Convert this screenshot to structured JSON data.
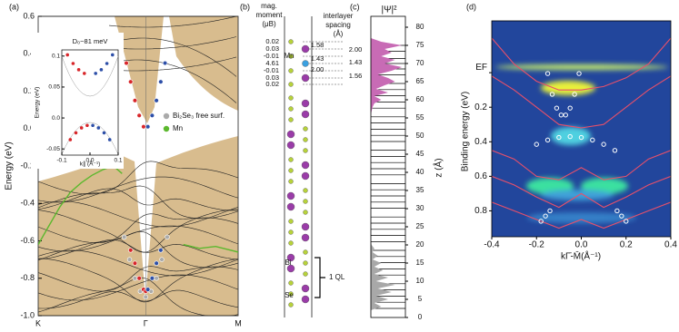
{
  "chart_data": [
    {
      "type": "bands",
      "panel_label": "(a)",
      "ylabel": "Energy (eV)",
      "xlim": [
        0,
        1.86
      ],
      "ylim": [
        -1.0,
        0.6
      ],
      "xticks": [
        {
          "value": 0,
          "label": "K"
        },
        {
          "value": 1,
          "label": "Γ"
        },
        {
          "value": 1.86,
          "label": "M"
        }
      ],
      "yticks": [
        0.6,
        0.4,
        0.2,
        {
          "value": 0,
          "label": "0.0"
        },
        -0.2,
        -0.4,
        -0.6,
        -0.8,
        {
          "value": -1,
          "label": "-1.0"
        }
      ],
      "series": [
        {
          "name": "Bi₂Se₃ free surf.",
          "color": "#aaaaaa",
          "marker": "circle",
          "x": [
            0.8,
            0.85,
            0.9,
            0.95,
            1.0,
            1.05,
            1.1,
            1.15,
            1.2
          ],
          "values": [
            -0.58,
            -0.7,
            -0.8,
            -0.87,
            -0.9,
            -0.87,
            -0.8,
            -0.7,
            -0.58
          ]
        },
        {
          "name": "Mn",
          "color": "#5cb82e",
          "marker": "line",
          "x": [
            0,
            0.1,
            0.2,
            0.3,
            0.4,
            0.5,
            0.6,
            0.7,
            0.78,
            0.79,
            1.35,
            1.5,
            1.65,
            1.86
          ],
          "values": [
            -0.62,
            -0.52,
            -0.42,
            -0.34,
            -0.29,
            -0.25,
            -0.22,
            -0.2,
            -0.24,
            null,
            -0.62,
            -0.64,
            -0.63,
            -0.66
          ]
        },
        {
          "color": "#d8262a",
          "marker": "circle",
          "x": [
            0.82,
            0.86,
            0.9,
            0.94,
            0.98,
            0.86,
            0.9,
            0.94,
            0.98,
            1.0
          ],
          "values": [
            0.35,
            0.25,
            0.15,
            0.07,
            0.01,
            -0.65,
            -0.72,
            -0.8,
            -0.86,
            -0.87
          ]
        },
        {
          "color": "#2d4fa8",
          "marker": "circle",
          "x": [
            1.02,
            1.06,
            1.1,
            1.14,
            1.18,
            1.02,
            1.06,
            1.1,
            1.14
          ],
          "values": [
            0.01,
            0.07,
            0.15,
            0.25,
            0.35,
            -0.86,
            -0.8,
            -0.72,
            -0.65
          ]
        }
      ],
      "inset": {
        "title": "D₀~81 meV",
        "ylabel": "Energy (eV)",
        "xlabel": "k∥ (Å⁻¹)",
        "xlim": [
          -0.1,
          0.1
        ],
        "ylim": [
          -0.06,
          0.11
        ],
        "xticks": [
          -0.1,
          {
            "value": 0,
            "label": "0.0"
          },
          0.1
        ],
        "yticks": [
          0.1,
          0.05,
          {
            "value": 0,
            "label": "0.0"
          },
          -0.05
        ],
        "series": [
          {
            "color": "#d8262a",
            "x": [
              -0.08,
              -0.06,
              -0.04,
              -0.02,
              -0.07,
              -0.05,
              -0.03,
              -0.01
            ],
            "values": [
              0.102,
              0.088,
              0.078,
              0.072,
              -0.035,
              -0.024,
              -0.016,
              -0.012
            ]
          },
          {
            "color": "#2d4fa8",
            "x": [
              0.02,
              0.04,
              0.06,
              0.08,
              0.01,
              0.03,
              0.05,
              0.07
            ],
            "values": [
              0.072,
              0.078,
              0.088,
              0.102,
              -0.012,
              -0.016,
              -0.024,
              -0.035
            ]
          }
        ]
      }
    },
    {
      "type": "density",
      "panel_label": "(c)",
      "title": "|Ψ|²",
      "ylabel": "z (Å)",
      "xlim": [
        0,
        1
      ],
      "ylim": [
        0,
        83
      ],
      "yticks": [
        0,
        5,
        10,
        15,
        20,
        25,
        30,
        35,
        40,
        45,
        50,
        55,
        60,
        65,
        70,
        75,
        80
      ],
      "layers": [
        2.5,
        4.2,
        5.9,
        7.6,
        9.3,
        11.7,
        13.4,
        15.1,
        16.8,
        18.5,
        20.9,
        22.6,
        24.3,
        26.0,
        27.7,
        30.1,
        31.8,
        33.5,
        35.2,
        36.9,
        39.3,
        41.0,
        42.7,
        44.4,
        46.1,
        48.5,
        50.2,
        51.9,
        53.6,
        55.3,
        57.7,
        59.4,
        61.1,
        62.8,
        64.5,
        66.9,
        68.5,
        70.0,
        71.4,
        73.4,
        75.0
      ],
      "series": [
        {
          "color": "#a8a8a8",
          "z": [
            2,
            3,
            4,
            5,
            6,
            7,
            8,
            9,
            10,
            11,
            12,
            13,
            14,
            15,
            16,
            17,
            18,
            19,
            20,
            21
          ],
          "values": [
            0,
            0.3,
            0.1,
            0.5,
            0.15,
            0.6,
            0.2,
            0.7,
            0.15,
            0.5,
            0.1,
            0.35,
            0.1,
            0.3,
            0.05,
            0.2,
            0.05,
            0.1,
            0.02,
            0
          ]
        },
        {
          "color": "#c86bb5",
          "z": [
            56,
            58,
            59,
            60,
            61,
            62,
            63,
            64,
            65,
            66,
            67,
            68,
            69,
            70,
            71,
            72,
            73,
            74,
            75,
            76,
            77
          ],
          "values": [
            0,
            0.05,
            0.1,
            0.3,
            0.1,
            0.5,
            0.15,
            0.4,
            0.7,
            0.5,
            0.2,
            0.6,
            0.9,
            0.4,
            0.7,
            0.3,
            0.6,
            0.4,
            0.9,
            0.3,
            0
          ]
        }
      ]
    },
    {
      "type": "arpes",
      "panel_label": "(d)",
      "xlabel": "kΓ̄-M̄(Å⁻¹)",
      "ylabel": "Binding energy (eV)",
      "xlim": [
        -0.4,
        0.4
      ],
      "ylim": [
        -0.3,
        0.95
      ],
      "y_inverted": true,
      "xticks": [
        -0.4,
        -0.2,
        {
          "value": 0,
          "label": "0.0"
        },
        0.2,
        0.4
      ],
      "yticks": [
        {
          "value": 0,
          "label": "EF"
        },
        0.2,
        0.4,
        0.6,
        0.8
      ],
      "series": [
        {
          "color": "#e8506a",
          "marker": "line",
          "x": [
            -0.4,
            -0.3,
            -0.2,
            -0.1,
            0,
            0.1,
            0.2,
            0.3,
            0.4
          ],
          "values": [
            -0.2,
            -0.05,
            0.05,
            0.1,
            0.1,
            0.08,
            0.03,
            -0.05,
            -0.2
          ]
        },
        {
          "color": "#e8506a",
          "marker": "line",
          "x": [
            -0.4,
            -0.3,
            -0.2,
            -0.1,
            0,
            0.1,
            0.2,
            0.3,
            0.4
          ],
          "values": [
            0.02,
            0.1,
            0.2,
            0.3,
            0.32,
            0.3,
            0.2,
            0.1,
            0.02
          ]
        },
        {
          "color": "#e8506a",
          "marker": "line",
          "x": [
            -0.4,
            -0.3,
            -0.2,
            -0.1,
            0,
            0.1,
            0.2,
            0.3,
            0.4
          ],
          "values": [
            0.45,
            0.5,
            0.6,
            0.62,
            0.55,
            0.62,
            0.6,
            0.5,
            0.45
          ]
        },
        {
          "color": "#e8506a",
          "marker": "line",
          "x": [
            -0.4,
            -0.3,
            -0.2,
            -0.1,
            0,
            0.1,
            0.2,
            0.3,
            0.4
          ],
          "values": [
            0.6,
            0.65,
            0.72,
            0.78,
            0.7,
            0.78,
            0.72,
            0.65,
            0.6
          ]
        },
        {
          "color": "#e8506a",
          "marker": "line",
          "x": [
            -0.4,
            -0.3,
            -0.2,
            -0.1,
            0,
            0.1,
            0.2,
            0.3,
            0.4
          ],
          "values": [
            0.75,
            0.8,
            0.85,
            0.9,
            0.85,
            0.9,
            0.85,
            0.8,
            0.75
          ]
        },
        {
          "color": "#ffffff",
          "marker": "circle",
          "x": [
            -0.15,
            -0.13,
            -0.11,
            -0.09,
            -0.07,
            -0.05,
            -0.03,
            -0.01
          ],
          "values": [
            0.005,
            0.125,
            0.205,
            0.245,
            0.245,
            0.205,
            0.125,
            0.005
          ]
        },
        {
          "color": "#ffffff",
          "marker": "circle",
          "x": [
            -0.2,
            -0.15,
            -0.1,
            -0.05,
            0,
            0.05,
            0.1,
            0.15
          ],
          "values": [
            0.415,
            0.39,
            0.375,
            0.37,
            0.375,
            0.39,
            0.415,
            0.45
          ]
        },
        {
          "color": "#ffffff",
          "marker": "circle",
          "x": [
            -0.18,
            -0.16,
            -0.14,
            0.16,
            0.18,
            0.2
          ],
          "values": [
            0.86,
            0.83,
            0.8,
            0.8,
            0.83,
            0.86
          ]
        }
      ]
    }
  ],
  "structure": {
    "panel_label": "(b)",
    "moment_title": [
      "mag.",
      "moment",
      "(μB)"
    ],
    "spacing_title": [
      "interlayer",
      "spacing",
      "(Å)"
    ],
    "moments": [
      "0.02",
      "0.03",
      "-0.01",
      "4.61",
      "-0.01",
      "0.03",
      "0.02"
    ],
    "spacings": [
      "1.58",
      "2.00",
      "1.43",
      "1.43",
      "2.00",
      "1.56"
    ],
    "atom_labels": [
      "Mn",
      "Bi",
      "Se"
    ],
    "ql_label": "1 QL"
  }
}
